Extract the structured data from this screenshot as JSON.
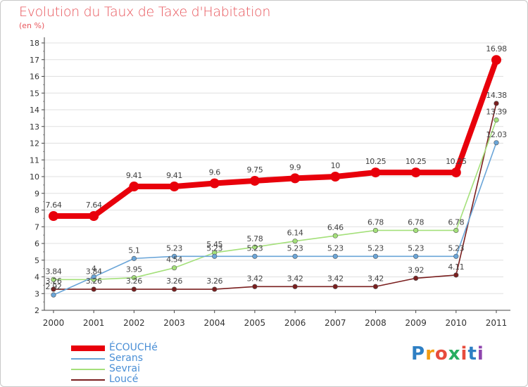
{
  "title": "Evolution du Taux de Taxe d'Habitation",
  "subtitle": "(en %)",
  "colors": {
    "title": "#e8565c",
    "axis": "#444444",
    "grid": "#e0e0e0"
  },
  "logo": {
    "letters": [
      "P",
      "r",
      "o",
      "x",
      "i",
      "t",
      "i"
    ],
    "colors": [
      "#2e7fc4",
      "#f39c12",
      "#e74c3c",
      "#27ae60",
      "#e74c3c",
      "#2e7fc4",
      "#8e44ad"
    ]
  },
  "chart_data": {
    "type": "line",
    "title": "Evolution du Taux de Taxe d'Habitation",
    "subtitle": "(en %)",
    "x": [
      "2000",
      "2001",
      "2002",
      "2003",
      "2004",
      "2005",
      "2006",
      "2007",
      "2008",
      "2009",
      "2010",
      "2011"
    ],
    "ylim": [
      2,
      18
    ],
    "yticks": [
      "2",
      "3",
      "4",
      "5",
      "6",
      "7",
      "8",
      "9",
      "10",
      "11",
      "12",
      "13",
      "14",
      "15",
      "16",
      "17",
      "18"
    ],
    "grid": true,
    "legend_position": "bottom-left",
    "series": [
      {
        "name": "ÉCOUCHé",
        "color": "#e8000b",
        "values": [
          7.64,
          7.64,
          9.41,
          9.41,
          9.6,
          9.75,
          9.9,
          10,
          10.25,
          10.25,
          10.25,
          16.98
        ],
        "labels": [
          "7.64",
          "7.64",
          "9.41",
          "9.41",
          "9.6",
          "9.75",
          "9.9",
          "10",
          "10.25",
          "10.25",
          "10.25",
          "16.98"
        ]
      },
      {
        "name": "Serans",
        "color": "#6aa5d8",
        "values": [
          2.92,
          4,
          5.1,
          5.23,
          5.23,
          5.23,
          5.23,
          5.23,
          5.23,
          5.23,
          5.23,
          12.03
        ],
        "labels": [
          "2.92",
          "4",
          "5.1",
          "5.23",
          "5.23",
          "5.23",
          "5.23",
          "5.23",
          "5.23",
          "5.23",
          "5.23",
          "12.03"
        ]
      },
      {
        "name": "Sevrai",
        "color": "#a4e07a",
        "values": [
          3.84,
          3.84,
          3.95,
          4.54,
          5.45,
          5.78,
          6.14,
          6.46,
          6.78,
          6.78,
          6.78,
          13.39
        ],
        "labels": [
          "3.84",
          "3.84",
          "3.95",
          "4.54",
          "5.45",
          "5.78",
          "6.14",
          "6.46",
          "6.78",
          "6.78",
          "6.78",
          "13.39"
        ]
      },
      {
        "name": "Loucé",
        "color": "#7a1f1f",
        "values": [
          3.26,
          3.26,
          3.26,
          3.26,
          3.26,
          3.42,
          3.42,
          3.42,
          3.42,
          3.92,
          4.11,
          14.38
        ],
        "labels": [
          "3.26",
          "3.26",
          "3.26",
          "3.26",
          "3.26",
          "3.42",
          "3.42",
          "3.42",
          "3.42",
          "3.92",
          "4.11",
          "14.38"
        ]
      }
    ]
  }
}
